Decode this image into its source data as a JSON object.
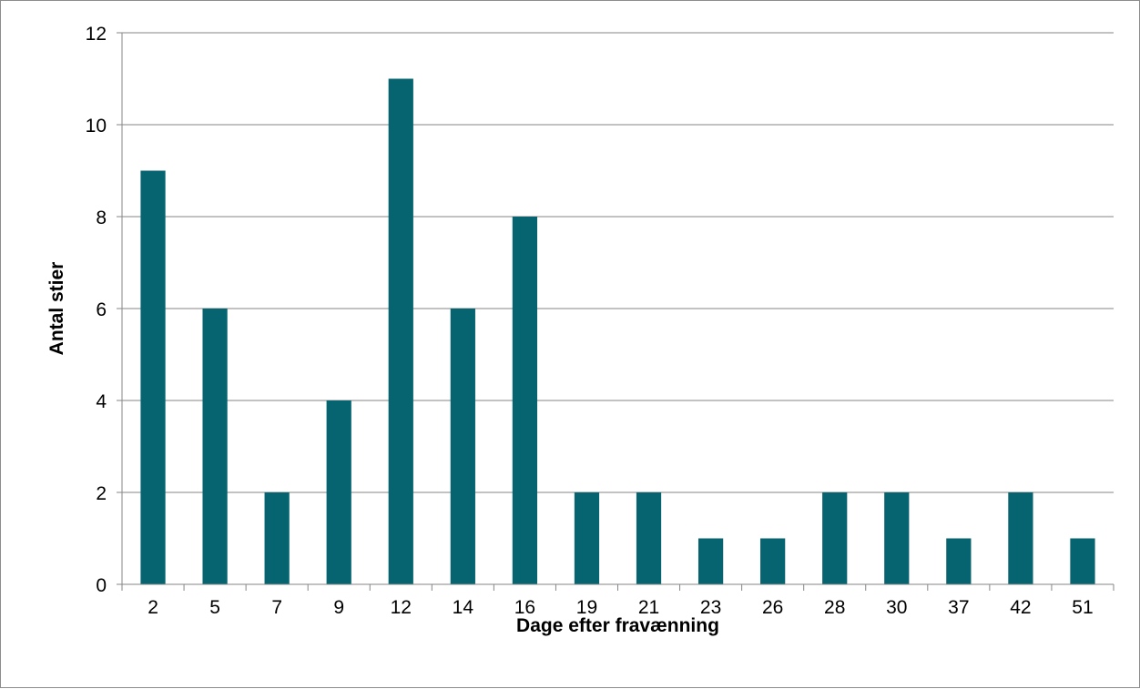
{
  "chart_data": {
    "type": "bar",
    "title": "",
    "xlabel": "Dage efter fravænning",
    "ylabel": "Antal stier",
    "categories": [
      "2",
      "5",
      "7",
      "9",
      "12",
      "14",
      "16",
      "19",
      "21",
      "23",
      "26",
      "28",
      "30",
      "37",
      "42",
      "51"
    ],
    "values": [
      9,
      6,
      2,
      4,
      11,
      6,
      8,
      2,
      2,
      1,
      1,
      2,
      2,
      1,
      2,
      1
    ],
    "ylim": [
      0,
      12
    ],
    "yticks": [
      0,
      2,
      4,
      6,
      8,
      10,
      12
    ],
    "grid": true,
    "legend": "none",
    "bar_color": "#066470",
    "grid_color": "#868686",
    "axis_color": "#868686"
  }
}
